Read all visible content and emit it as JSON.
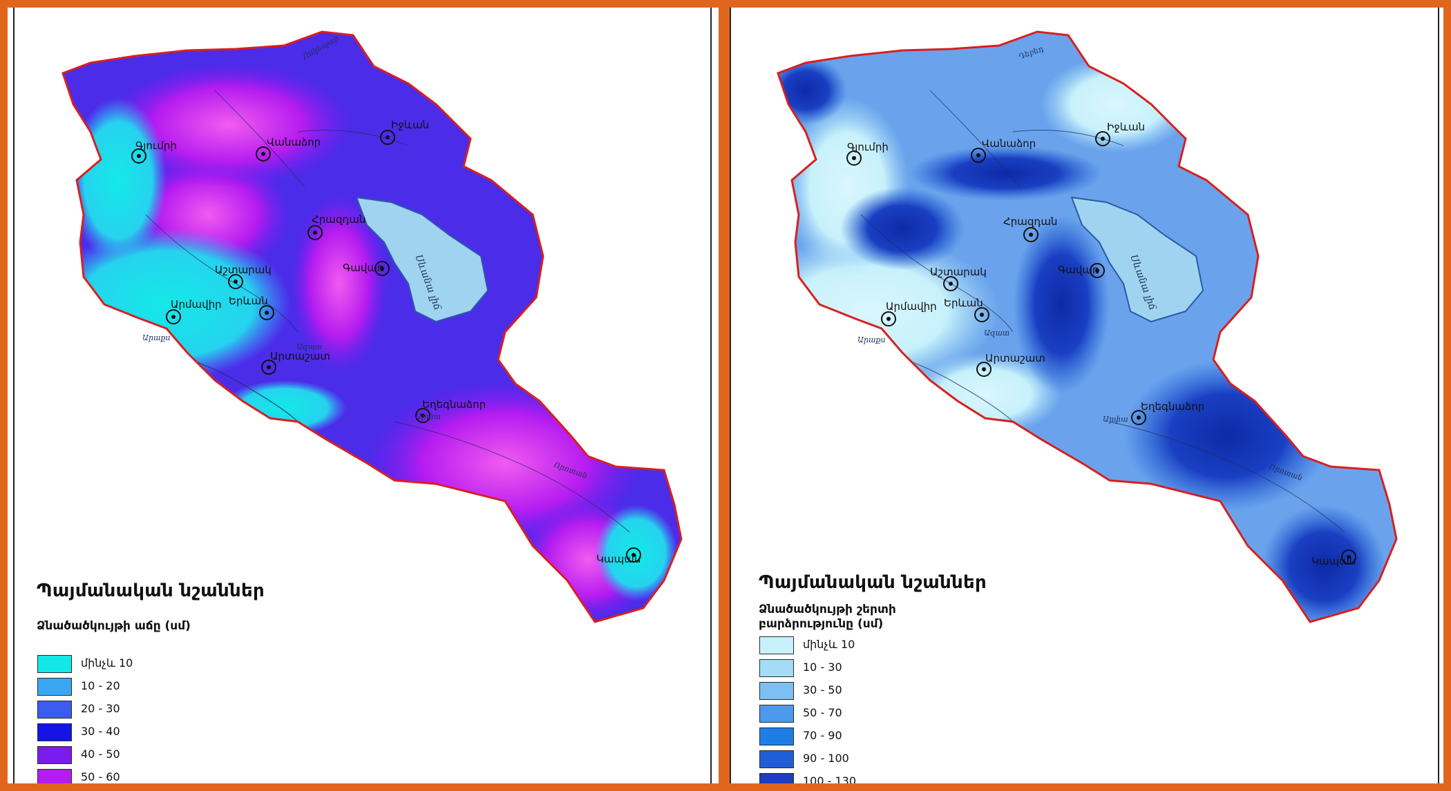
{
  "maps": [
    {
      "legend_title": "Պայմանական նշաններ",
      "legend_subtitle": "Ձնածածկույթի աճը (սմ)",
      "legend_items": [
        {
          "label": "մինչև  10",
          "color": "#14e8e8"
        },
        {
          "label": "10 - 20",
          "color": "#3aa7f4"
        },
        {
          "label": "20 - 30",
          "color": "#3b5cf0"
        },
        {
          "label": "30 - 40",
          "color": "#1414e6"
        },
        {
          "label": "40 - 50",
          "color": "#7a1bf0"
        },
        {
          "label": "50 - 60",
          "color": "#b51cf0"
        }
      ],
      "cities": [
        "Գյումրի",
        "Վանաձոր",
        "Իջևան",
        "Հրազդան",
        "Աշտարակ",
        "Գավառ",
        "Արմավիր",
        "Երևան",
        "Արտաշատ",
        "Եղեգնաձոր",
        "Կապան"
      ],
      "lake_label": "Սևանա լիճ",
      "river_labels": [
        "Արաքս",
        "Արփա",
        "Որոտան",
        "Ազատ",
        "Ոսկեպար"
      ]
    },
    {
      "legend_title": "Պայմանական նշաններ",
      "legend_subtitle": "Ձնածածկույթի շերտի բարձրությունը (սմ)",
      "legend_items": [
        {
          "label": "մինչև  10",
          "color": "#c8f1fb"
        },
        {
          "label": "10 - 30",
          "color": "#a4dcf7"
        },
        {
          "label": "30 - 50",
          "color": "#7dbff2"
        },
        {
          "label": "50 - 70",
          "color": "#4d9aec"
        },
        {
          "label": "70 - 90",
          "color": "#1e7ee6"
        },
        {
          "label": "90 - 100",
          "color": "#1f5ed6"
        },
        {
          "label": "100 - 130",
          "color": "#1a3fc2"
        }
      ],
      "cities": [
        "Գյումրի",
        "Վանաձոր",
        "Իջևան",
        "Հրազդան",
        "Աշտարակ",
        "Գավառ",
        "Արմավիր",
        "Երևան",
        "Արտաշատ",
        "Եղեգնաձոր",
        "Կապան"
      ],
      "lake_label": "Սևանա լիճ",
      "river_labels": [
        "Արաքս",
        "Արփա",
        "Որոտան",
        "Ազատ",
        "Դեբեդ"
      ]
    }
  ],
  "colors": {
    "frame": "#e1661d",
    "border": "#d81f1f",
    "lake": "#9fd3ef",
    "left_base": "#4b2ce9",
    "right_base": "#6aa3ec"
  }
}
